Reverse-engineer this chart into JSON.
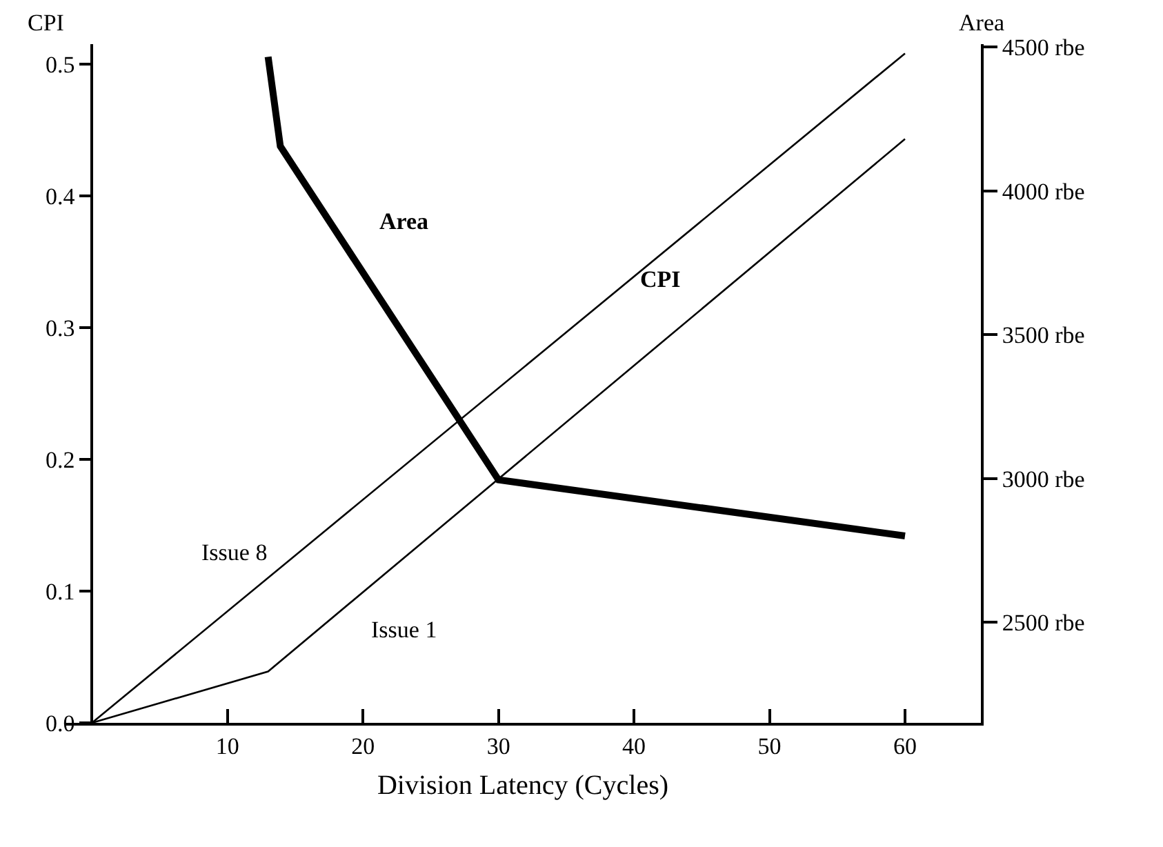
{
  "chart_data": {
    "type": "line",
    "xlabel": "Division Latency (Cycles)",
    "ylabel": "CPI",
    "y2label": "Area",
    "series": [
      {
        "name": "Issue 8",
        "color": "#000000",
        "x": [
          0,
          60
        ],
        "values": [
          0,
          0.508
        ]
      },
      {
        "name": "Issue 1",
        "color": "#000000",
        "x": [
          0,
          13,
          60
        ],
        "values": [
          0,
          0.039,
          0.443
        ]
      },
      {
        "name": "Area",
        "color": "#000000",
        "axis": "y2",
        "x": [
          13,
          13.9,
          30,
          60
        ],
        "values": [
          4466,
          4155,
          2995,
          2800
        ]
      }
    ],
    "annotations": [
      "CPI"
    ],
    "xlim": [
      -2,
      65.6
    ],
    "xticks": [
      10,
      20,
      30,
      40,
      50,
      60
    ],
    "ylim": [
      0,
      0.515
    ],
    "yticks": [
      {
        "value": 0,
        "label": "0.0"
      },
      0.1,
      0.2,
      0.3,
      0.4,
      0.5
    ],
    "y2lim": [
      2150,
      4510
    ],
    "y2ticks": [
      {
        "value": 2500,
        "label": "2500 rbe"
      },
      {
        "value": 3000,
        "label": "3000 rbe"
      },
      {
        "value": 3500,
        "label": "3500 rbe"
      },
      {
        "value": 4000,
        "label": "4000 rbe"
      },
      {
        "value": 4500,
        "label": "4500 rbe"
      }
    ],
    "grid": false,
    "legend": false,
    "marker": "none",
    "line_style": "solid"
  }
}
